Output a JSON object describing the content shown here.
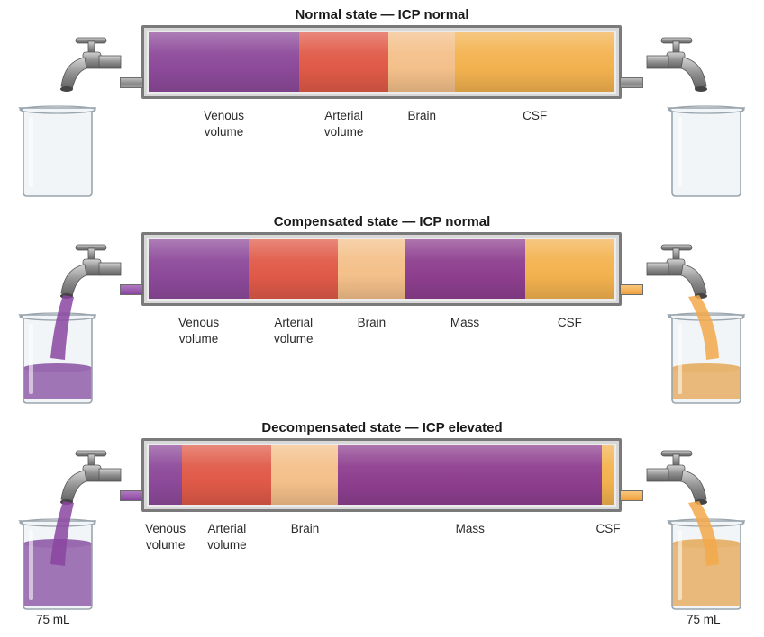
{
  "colors": {
    "venous": "#8d4a9a",
    "arterial": "#e05a48",
    "brain": "#f4c08a",
    "mass": "#8e3f8f",
    "csf": "#f3b24f",
    "purple_liquid": "#8a45a0",
    "orange_liquid": "#f2a84a"
  },
  "panels": [
    {
      "title": "Normal state — ICP normal",
      "segments": [
        {
          "key": "venous",
          "label": "Venous\nvolume",
          "share": 0.323
        },
        {
          "key": "arterial",
          "label": "Arterial\nvolume",
          "share": 0.192
        },
        {
          "key": "brain",
          "label": "Brain",
          "share": 0.143
        },
        {
          "key": "csf",
          "label": "CSF",
          "share": 0.342
        }
      ],
      "left_flow": false,
      "right_flow": false,
      "left_beaker_level": 0,
      "right_beaker_level": 0
    },
    {
      "title": "Compensated state — ICP normal",
      "segments": [
        {
          "key": "venous",
          "label": "Venous\nvolume",
          "share": 0.215
        },
        {
          "key": "arterial",
          "label": "Arterial\nvolume",
          "share": 0.192
        },
        {
          "key": "brain",
          "label": "Brain",
          "share": 0.143
        },
        {
          "key": "mass",
          "label": "Mass",
          "share": 0.258
        },
        {
          "key": "csf",
          "label": "CSF",
          "share": 0.192
        }
      ],
      "left_flow": true,
      "right_flow": true,
      "left_beaker_level": 0.38,
      "right_beaker_level": 0.38
    },
    {
      "title": "Decompensated state — ICP elevated",
      "segments": [
        {
          "key": "venous",
          "label": "Venous\nvolume",
          "share": 0.072
        },
        {
          "key": "arterial",
          "label": "Arterial\nvolume",
          "share": 0.192
        },
        {
          "key": "brain",
          "label": "Brain",
          "share": 0.143
        },
        {
          "key": "mass",
          "label": "Mass",
          "share": 0.566
        },
        {
          "key": "csf",
          "label": "CSF",
          "share": 0.027
        }
      ],
      "left_flow": true,
      "right_flow": true,
      "left_beaker_level": 0.75,
      "right_beaker_level": 0.75,
      "left_volume": "75 mL",
      "right_volume": "75 mL"
    }
  ]
}
